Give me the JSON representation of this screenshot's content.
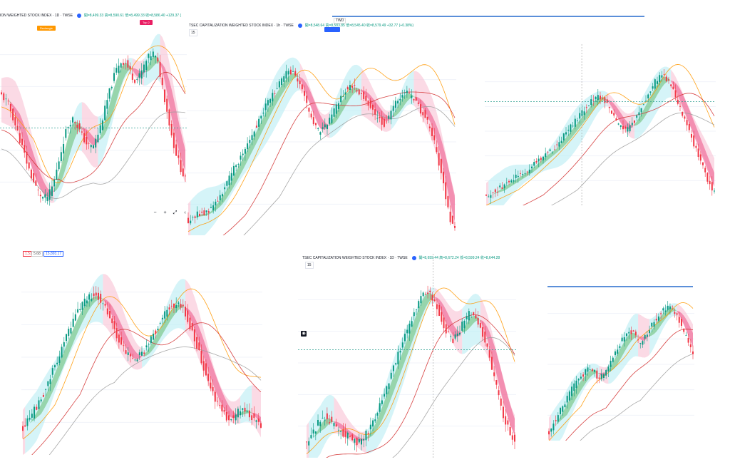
{
  "colors": {
    "up": "#089981",
    "down": "#f23645",
    "band_up": "#b2ebf2",
    "band_down": "#f8bbd0",
    "ribbon_up": "#4caf50",
    "ribbon_down": "#e91e63",
    "ma_orange": "#ff9800",
    "ma_red": "#d32f2f",
    "ma_gray": "#9e9e9e",
    "tag_rect": "#ff9800",
    "tag_top": "#e91e63",
    "accent": "#2962ff"
  },
  "panels": [
    {
      "id": "p1",
      "legend": {
        "title": "ION WEIGHTED STOCK INDEX · 1D · TWSE",
        "open": "開=8,499.33",
        "high": "高=8,590.61",
        "low": "低=8,499.33",
        "close": "收=8,586.40",
        "change": "+129.37 (",
        "interval": ""
      },
      "tags": [
        "Rectangle",
        "Top 2"
      ],
      "controls": [
        "−",
        "+",
        "⤢",
        "‹"
      ]
    },
    {
      "id": "p2",
      "legend": {
        "title": "TSEC CAPITALIZATION WEIGHTED STOCK INDEX · 1h · TWSE",
        "open": "開=8,548.64",
        "high": "高=8,583.85",
        "low": "低=8,545.40",
        "close": "收=8,579.49",
        "change": "+32.77 (+0.38%)",
        "interval": "15"
      },
      "top_bar": {
        "label": "TWD"
      }
    },
    {
      "id": "p3",
      "legend": null
    },
    {
      "id": "p4",
      "legend": {
        "title": "",
        "open": "",
        "high": "",
        "low": "",
        "close": "",
        "change": "",
        "interval": ""
      },
      "price_badges": [
        "1.51",
        "5.68",
        "15,893.17"
      ]
    },
    {
      "id": "p5",
      "legend": {
        "title": "TSEC CAPITALIZATION WEIGHTED STOCK INDEX · 1D · TWSE",
        "open": "開=8,659.44",
        "high": "高=8,672.24",
        "low": "低=8,599.24",
        "close": "收=8,644.28",
        "change": "",
        "interval": "15"
      }
    },
    {
      "id": "p6",
      "legend": null
    }
  ],
  "chart_data": [
    {
      "type": "candlestick",
      "panel": "p1",
      "title": "ION WEIGHTED STOCK INDEX · 1D · TWSE",
      "series": [
        {
          "name": "close",
          "values": [
            62,
            60,
            57,
            52,
            46,
            40,
            34,
            28,
            22,
            17,
            13,
            10,
            8,
            9,
            12,
            18,
            26,
            34,
            42,
            47,
            50,
            48,
            44,
            40,
            37,
            35,
            36,
            40,
            46,
            53,
            60,
            67,
            73,
            78,
            80,
            79,
            76,
            72,
            70,
            72,
            76,
            80,
            83,
            84,
            80,
            72,
            62,
            52,
            42,
            34,
            28,
            22,
            18
          ]
        }
      ],
      "annotations": [
        "Rectangle",
        "Top 2"
      ]
    },
    {
      "type": "candlestick",
      "panel": "p2",
      "title": "TSEC CAPITALIZATION WEIGHTED STOCK INDEX · 1h · TWSE",
      "series": [
        {
          "name": "close",
          "values": [
            8,
            10,
            12,
            11,
            14,
            18,
            22,
            27,
            33,
            39,
            44,
            50,
            56,
            62,
            68,
            73,
            78,
            82,
            86,
            88,
            84,
            76,
            68,
            60,
            55,
            58,
            62,
            68,
            74,
            78,
            80,
            78,
            75,
            71,
            66,
            62,
            60,
            64,
            70,
            75,
            77,
            74,
            70,
            66,
            60,
            52,
            40,
            25,
            10,
            2
          ]
        }
      ]
    },
    {
      "type": "candlestick",
      "panel": "p3",
      "series": [
        {
          "name": "close",
          "values": [
            6,
            8,
            10,
            12,
            14,
            16,
            18,
            20,
            22,
            24,
            27,
            30,
            33,
            35,
            37,
            40,
            44,
            48,
            52,
            56,
            60,
            64,
            68,
            72,
            74,
            72,
            68,
            62,
            56,
            52,
            50,
            54,
            58,
            64,
            70,
            76,
            82,
            86,
            88,
            84,
            78,
            70,
            62,
            54,
            46,
            38,
            30,
            22,
            14,
            8
          ]
        }
      ]
    },
    {
      "type": "candlestick",
      "panel": "p4",
      "series": [
        {
          "name": "close",
          "values": [
            14,
            18,
            24,
            30,
            38,
            46,
            54,
            62,
            70,
            76,
            80,
            82,
            80,
            74,
            66,
            58,
            52,
            48,
            50,
            54,
            60,
            66,
            72,
            76,
            78,
            74,
            66,
            56,
            46,
            36,
            28,
            22,
            18,
            20,
            24,
            22,
            18,
            14
          ]
        }
      ],
      "price_labels": [
        "1.51",
        "5.68",
        "15,893.17"
      ]
    },
    {
      "type": "candlestick",
      "panel": "p5",
      "title": "TSEC CAPITALIZATION WEIGHTED STOCK INDEX · 1D · TWSE",
      "series": [
        {
          "name": "close",
          "values": [
            8,
            12,
            18,
            22,
            20,
            16,
            14,
            12,
            10,
            8,
            10,
            14,
            20,
            28,
            36,
            44,
            52,
            60,
            68,
            76,
            84,
            88,
            86,
            80,
            72,
            66,
            62,
            66,
            72,
            76,
            74,
            68,
            58,
            46,
            34,
            22,
            14,
            8
          ]
        }
      ]
    },
    {
      "type": "candlestick",
      "panel": "p6",
      "series": [
        {
          "name": "close",
          "values": [
            6,
            12,
            18,
            24,
            30,
            36,
            40,
            44,
            48,
            46,
            40,
            44,
            50,
            56,
            62,
            68,
            72,
            70,
            64,
            66,
            72,
            78,
            82,
            86,
            88,
            86,
            80,
            72,
            64,
            56
          ]
        }
      ]
    }
  ]
}
